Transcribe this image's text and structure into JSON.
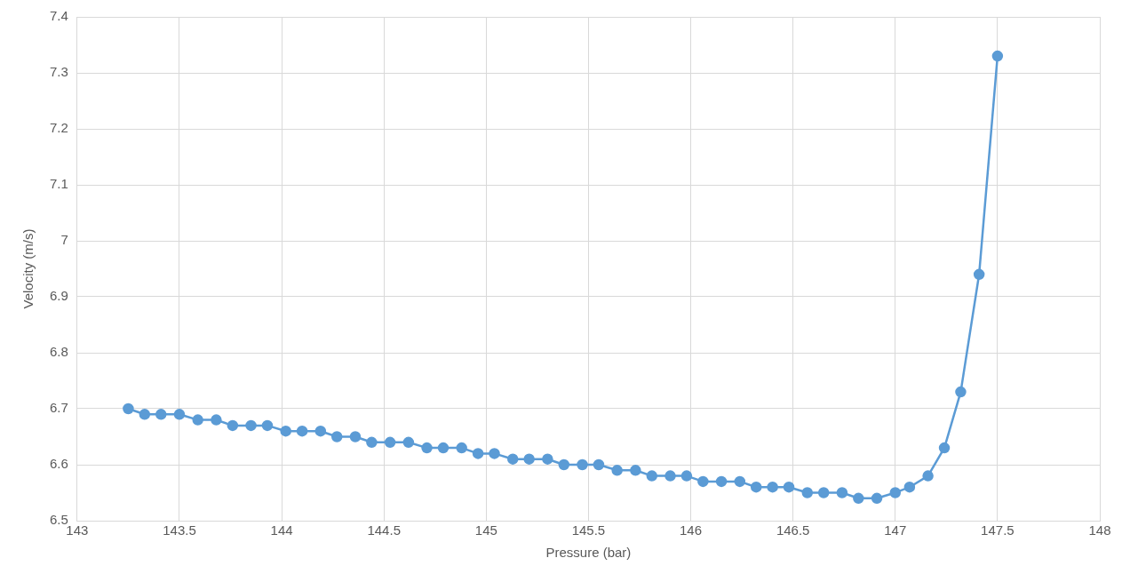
{
  "chart_data": {
    "type": "line",
    "xlabel": "Pressure (bar)",
    "ylabel": "Velocity (m/s)",
    "x": [
      143.25,
      143.33,
      143.41,
      143.5,
      143.59,
      143.68,
      143.76,
      143.85,
      143.93,
      144.02,
      144.1,
      144.19,
      144.27,
      144.36,
      144.44,
      144.53,
      144.62,
      144.71,
      144.79,
      144.88,
      144.96,
      145.04,
      145.13,
      145.21,
      145.3,
      145.38,
      145.47,
      145.55,
      145.64,
      145.73,
      145.81,
      145.9,
      145.98,
      146.06,
      146.15,
      146.24,
      146.32,
      146.4,
      146.48,
      146.57,
      146.65,
      146.74,
      146.82,
      146.91,
      147.0,
      147.07,
      147.16,
      147.24,
      147.32,
      147.41,
      147.5
    ],
    "series": [
      {
        "color": "#5b9bd5",
        "values": [
          6.7,
          6.69,
          6.69,
          6.69,
          6.68,
          6.68,
          6.67,
          6.67,
          6.67,
          6.66,
          6.66,
          6.66,
          6.65,
          6.65,
          6.64,
          6.64,
          6.64,
          6.63,
          6.63,
          6.63,
          6.62,
          6.62,
          6.61,
          6.61,
          6.61,
          6.6,
          6.6,
          6.6,
          6.59,
          6.59,
          6.58,
          6.58,
          6.58,
          6.57,
          6.57,
          6.57,
          6.56,
          6.56,
          6.56,
          6.55,
          6.55,
          6.55,
          6.54,
          6.54,
          6.55,
          6.56,
          6.58,
          6.63,
          6.73,
          6.94,
          7.33
        ]
      }
    ],
    "xlim": [
      143,
      148
    ],
    "xticks": [
      143,
      143.5,
      144,
      144.5,
      145,
      145.5,
      146,
      146.5,
      147,
      147.5,
      148
    ],
    "ylim": [
      6.5,
      7.4
    ],
    "yticks": [
      6.5,
      6.6,
      6.7,
      6.8,
      6.9,
      7,
      7.1,
      7.2,
      7.3,
      7.4
    ],
    "grid": true,
    "legend": false,
    "marker": "circle",
    "line_style": "solid"
  }
}
